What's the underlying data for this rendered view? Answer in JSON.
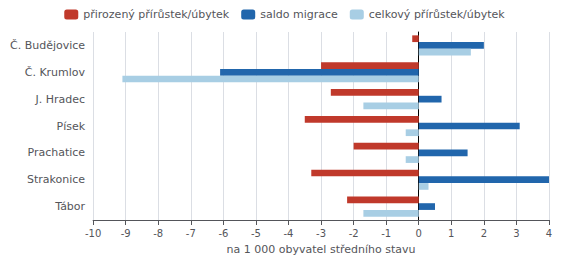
{
  "chart_data": {
    "type": "bar",
    "orientation": "horizontal",
    "categories": [
      "Č. Budějovice",
      "Č. Krumlov",
      "J. Hradec",
      "Písek",
      "Prachatice",
      "Strakonice",
      "Tábor"
    ],
    "series": [
      {
        "name": "přirozený přírůstek/úbytek",
        "color": "#c0392b",
        "values": [
          -0.2,
          -3.0,
          -2.7,
          -3.5,
          -2.0,
          -3.3,
          -2.2
        ]
      },
      {
        "name": "saldo migrace",
        "color": "#2166ac",
        "values": [
          2.0,
          -6.1,
          0.7,
          3.1,
          1.5,
          4.0,
          0.5
        ]
      },
      {
        "name": "celkový přírůstek/úbytek",
        "color": "#a8cee4",
        "values": [
          1.6,
          -9.1,
          -1.7,
          -0.4,
          -0.4,
          0.3,
          -1.7
        ]
      }
    ],
    "xlabel": "na 1 000 obyvatel středního stavu",
    "xlim": [
      -10,
      4
    ],
    "xticks": [
      -10,
      -9,
      -8,
      -7,
      -6,
      -5,
      -4,
      -3,
      -2,
      -1,
      0,
      1,
      2,
      3,
      4
    ],
    "grid": true,
    "legend": "top"
  }
}
